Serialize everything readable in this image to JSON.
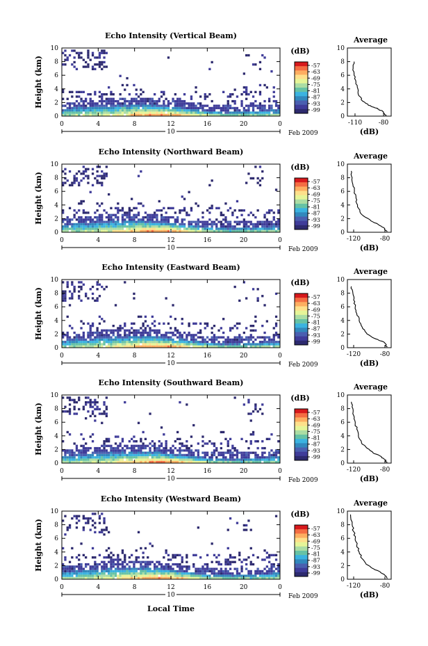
{
  "chart_data": {
    "type": "heatmap",
    "month_label": "Feb 2009",
    "day_label": "10",
    "xlabel": "Local Time",
    "ylabel": "Height (km)",
    "x_ticks": [
      "0",
      "4",
      "8",
      "12",
      "16",
      "20",
      "0"
    ],
    "y_ticks": [
      "0",
      "2",
      "4",
      "6",
      "8",
      "10"
    ],
    "xlim": [
      0,
      24
    ],
    "ylim": [
      0,
      10
    ],
    "colorbar": {
      "unit": "(dB)",
      "labels": [
        "-57",
        "-63",
        "-69",
        "-75",
        "-81",
        "-87",
        "-93",
        "-99"
      ],
      "colors": [
        "#d7191c",
        "#f46d43",
        "#fdae61",
        "#fee08b",
        "#e6f598",
        "#abdda4",
        "#66c2a5",
        "#3bb3e0",
        "#3288bd",
        "#4a5fb0",
        "#3f3c99",
        "#2d2a6e"
      ]
    },
    "panels": [
      {
        "title": "Echo Intensity (Vertical Beam)",
        "avg_title": "Average",
        "avg_xlabel": "(dB)",
        "avg_xticks": [
          "-110",
          "-80"
        ],
        "avg_xlim": [
          -118,
          -72
        ],
        "avg_profile": [
          [
            -77,
            0.1
          ],
          [
            -80,
            0.6
          ],
          [
            -85,
            1.0
          ],
          [
            -90,
            1.3
          ],
          [
            -96,
            1.6
          ],
          [
            -102,
            2.2
          ],
          [
            -106,
            3.0
          ],
          [
            -107,
            4.0
          ],
          [
            -109,
            5.0
          ],
          [
            -111,
            6.0
          ],
          [
            -112,
            7.0
          ],
          [
            -111,
            8.0
          ]
        ]
      },
      {
        "title": "Echo Intensity (Northward Beam)",
        "avg_title": "Average",
        "avg_xlabel": "(dB)",
        "avg_xticks": [
          "-120",
          "-80"
        ],
        "avg_xlim": [
          -128,
          -72
        ],
        "avg_profile": [
          [
            -77,
            0.1
          ],
          [
            -82,
            0.7
          ],
          [
            -88,
            1.1
          ],
          [
            -95,
            1.5
          ],
          [
            -105,
            2.2
          ],
          [
            -112,
            3.0
          ],
          [
            -115,
            4.0
          ],
          [
            -117,
            5.0
          ],
          [
            -119,
            6.0
          ],
          [
            -121,
            7.0
          ],
          [
            -122,
            8.0
          ],
          [
            -123,
            9.0
          ]
        ]
      },
      {
        "title": "Echo Intensity (Eastward Beam)",
        "avg_title": "Average",
        "avg_xlabel": "(dB)",
        "avg_xticks": [
          "-120",
          "-80"
        ],
        "avg_xlim": [
          -128,
          -72
        ],
        "avg_profile": [
          [
            -77,
            0.1
          ],
          [
            -81,
            0.8
          ],
          [
            -88,
            1.1
          ],
          [
            -96,
            1.5
          ],
          [
            -104,
            2.2
          ],
          [
            -109,
            3.0
          ],
          [
            -113,
            4.0
          ],
          [
            -116,
            5.0
          ],
          [
            -118,
            6.0
          ],
          [
            -120,
            7.0
          ],
          [
            -121,
            8.0
          ],
          [
            -123,
            9.0
          ]
        ]
      },
      {
        "title": "Echo Intensity (Southward Beam)",
        "avg_title": "Average",
        "avg_xlabel": "(dB)",
        "avg_xticks": [
          "-120",
          "-80"
        ],
        "avg_xlim": [
          -128,
          -72
        ],
        "avg_profile": [
          [
            -77,
            0.1
          ],
          [
            -82,
            0.7
          ],
          [
            -87,
            1.1
          ],
          [
            -95,
            1.5
          ],
          [
            -103,
            2.2
          ],
          [
            -110,
            3.0
          ],
          [
            -114,
            4.0
          ],
          [
            -116,
            5.0
          ],
          [
            -118,
            6.0
          ],
          [
            -120,
            7.0
          ],
          [
            -121,
            8.0
          ],
          [
            -123,
            9.0
          ]
        ]
      },
      {
        "title": "Echo Intensity (Westward Beam)",
        "avg_title": "Average",
        "avg_xlabel": "(dB)",
        "avg_xticks": [
          "-120",
          "-80"
        ],
        "avg_xlim": [
          -128,
          -72
        ],
        "avg_profile": [
          [
            -77,
            0.1
          ],
          [
            -81,
            0.7
          ],
          [
            -88,
            1.2
          ],
          [
            -96,
            1.6
          ],
          [
            -104,
            2.2
          ],
          [
            -109,
            3.0
          ],
          [
            -113,
            4.0
          ],
          [
            -116,
            5.0
          ],
          [
            -118,
            6.0
          ],
          [
            -120,
            7.0
          ],
          [
            -122,
            8.0
          ],
          [
            -124,
            9.5
          ]
        ]
      }
    ]
  }
}
